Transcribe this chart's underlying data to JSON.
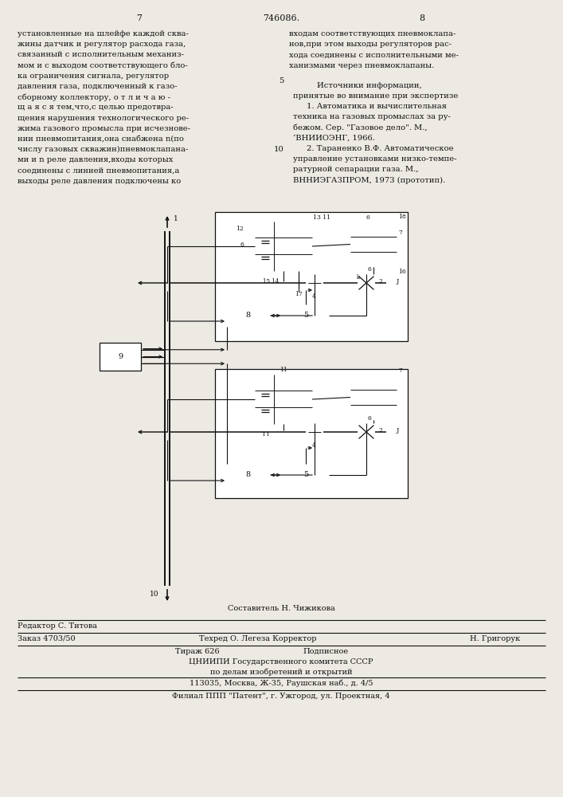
{
  "background_color": "#ede9e3",
  "text_color": "#111111",
  "page_number_left": "7",
  "patent_number": "746086.",
  "page_number_right": "8",
  "left_column_text": [
    "установленные на шлейфе каждой сква-",
    "жины датчик и регулятор расхода газа,",
    "связанный с исполнительным механиз-",
    "мом и с выходом соответствующего бло-",
    "ка ограничения сигнала, регулятор",
    "давления газа, подключенный к газо-",
    "сборному коллектору, о т л и ч а ю -",
    "щ а я с я тем,что,с целью предотвра-",
    "щения нарушения технологического ре-",
    "жима газового промысла при исчезнове-",
    "нии пневмопитания,она снабжена n(по",
    "числу газовых скважин)пневмоклапана-",
    "ми и n реле давления,входы которых",
    "соединены с линией пневмопитания,а",
    "выходы реле давления подключены ко"
  ],
  "right_col_intro": [
    "входам соответствующих пневмоклапа-",
    "нов,при этом выходы регуляторов рас-",
    "хода соединены с исполнительными ме-",
    "ханизмами через пневмоклапаны."
  ],
  "src_num1": "5",
  "src_num2": "10",
  "src_header": "Источники информации,",
  "src_sub": "принятые во внимание при экспертизе",
  "src1": [
    "1. Автоматика и вычислительная",
    "техника на газовых промыслах за ру-",
    "бежом. Сер. \"Газовое дело\". М.,",
    "ʻВНИИОЭНГ, 1966."
  ],
  "src2": [
    "2. Тараненко В.Ф. Автоматическое",
    "управление установками низко-темпе-",
    "ратурной сепарации газа. М.,",
    "ВННИЭГАЗПРОМ, 1973 (прототип)."
  ],
  "footer_comp": "Составитель Н. Чижикова",
  "footer_ed": "Редактор С. Титова",
  "footer_tech": "Техред О. Легеза Корректор",
  "footer_corr": "Н. Григорук",
  "footer_order": "Заказ 4703/50",
  "footer_copies": "Тираж 626",
  "footer_sub": "Подписное",
  "footer_org1": "ЦНИИПИ Государственного комитета СССР",
  "footer_org2": "по делам изобретений и открытий",
  "footer_addr": "113035, Москва, Ж-35, Раушская наб., д. 4/5",
  "footer_branch": "Филиал ППП \"Патент\", г. Ужгород, ул. Проектная, 4"
}
